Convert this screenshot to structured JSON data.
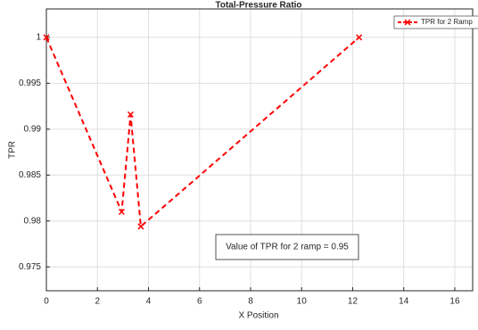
{
  "chart_data": {
    "type": "line",
    "title": "Total-Pressure Ratio",
    "x_label": "X Position",
    "y_label": "TPR",
    "annotation": "Value of TPR for 2 ramp = 0.95",
    "x": [
      0,
      2.95,
      3.3,
      3.7,
      12.25
    ],
    "series": [
      {
        "name": "TPR for 2 Ramp",
        "color": "#ff0000",
        "values": [
          1.0,
          0.981,
          0.9916,
          0.9794,
          1.0
        ]
      }
    ],
    "xlim": [
      0,
      16.7
    ],
    "xticks": [
      0,
      2,
      4,
      6,
      8,
      10,
      12,
      14,
      16
    ],
    "ylim": [
      0.9724,
      1.0031
    ],
    "yticks": [
      0.975,
      0.98,
      0.985,
      0.99,
      0.995,
      1
    ],
    "grid": true,
    "legend": "top-right"
  }
}
